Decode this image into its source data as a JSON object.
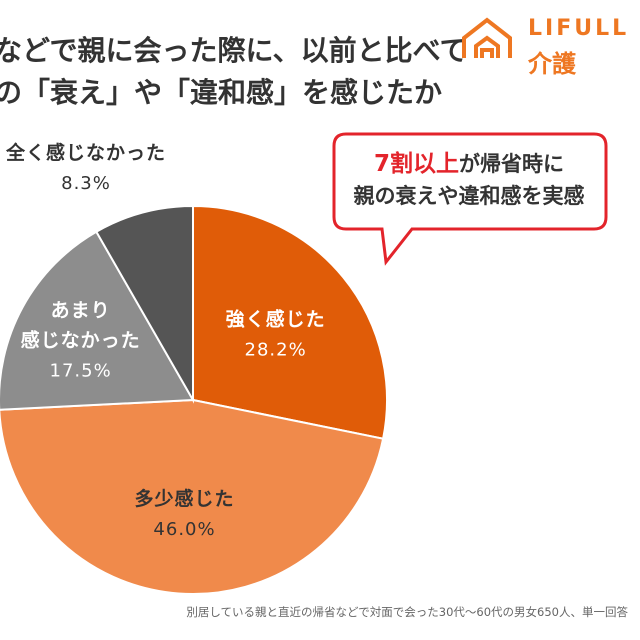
{
  "title": {
    "line1": "などで親に会った際に、以前と比べて",
    "line2": "の「衰え」や「違和感」を感じたか"
  },
  "logo": {
    "text_en": "LIFULL",
    "text_jp": "介護"
  },
  "callout": {
    "highlight": "7割以上",
    "line1_rest": "が帰省時に",
    "line2": "親の衰えや違和感を実感"
  },
  "footnote": "別居している親と直近の帰省などで対面で会った30代〜60代の男女650人、単一回答",
  "colors": {
    "strong": "#e05c08",
    "some": "#f08a4b",
    "notmuch": "#8d8d8d",
    "none": "#555555",
    "accent_red": "#e3242b",
    "brand_orange": "#ee7722"
  },
  "chart_data": {
    "type": "pie",
    "start_angle": 0,
    "direction": "clockwise",
    "categories": [
      "強く感じた",
      "多少感じた",
      "あまり感じなかった",
      "全く感じなかった"
    ],
    "values": [
      28.2,
      46.0,
      17.5,
      8.3
    ],
    "unit": "%",
    "slices": [
      {
        "label_lines": [
          "強く感じた"
        ],
        "value_text": "28.2%",
        "color": "#e05c08",
        "label_inside": true,
        "text_color": "#ffffff"
      },
      {
        "label_lines": [
          "多少感じた"
        ],
        "value_text": "46.0%",
        "color": "#f08a4b",
        "label_inside": true,
        "text_color": "#333333"
      },
      {
        "label_lines": [
          "あまり",
          "感じなかった"
        ],
        "value_text": "17.5%",
        "color": "#8d8d8d",
        "label_inside": true,
        "text_color": "#ffffff"
      },
      {
        "label_lines": [
          "全く感じなかった"
        ],
        "value_text": "8.3%",
        "color": "#555555",
        "label_inside": false,
        "text_color": "#333333"
      }
    ]
  }
}
